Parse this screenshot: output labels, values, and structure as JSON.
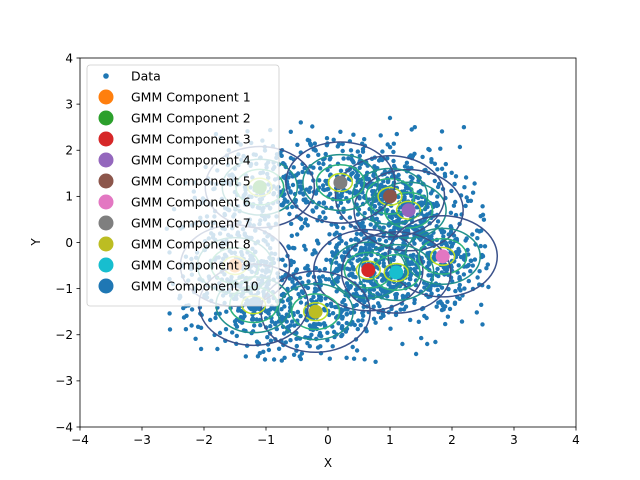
{
  "chart_data": {
    "type": "scatter",
    "title": "",
    "xlabel": "X",
    "ylabel": "Y",
    "xlim": [
      -4,
      4
    ],
    "ylim": [
      -4,
      4
    ],
    "xticks": [
      "−4",
      "−3",
      "−2",
      "−1",
      "0",
      "1",
      "2",
      "3",
      "4"
    ],
    "yticks": [
      "−4",
      "−3",
      "−2",
      "−1",
      "0",
      "1",
      "2",
      "3",
      "4"
    ],
    "grid": false,
    "legend_position": "top-left",
    "data_series": {
      "name": "Data",
      "color": "#1f77b4",
      "approx_count": 2000,
      "extent": {
        "x": [
          -2.6,
          2.6
        ],
        "y": [
          -2.6,
          2.7
        ]
      },
      "points_sample": [
        [
          -2.2,
          -1.8
        ],
        [
          -1.1,
          -2.4
        ],
        [
          -0.7,
          -2.5
        ],
        [
          0.3,
          -2.5
        ],
        [
          1.2,
          -2.2
        ],
        [
          1.6,
          -2.2
        ],
        [
          2.2,
          -1.0
        ],
        [
          2.5,
          -0.3
        ],
        [
          2.5,
          0.6
        ],
        [
          2.2,
          1.2
        ],
        [
          1.4,
          2.5
        ],
        [
          1.0,
          2.7
        ],
        [
          0.2,
          2.4
        ],
        [
          -0.6,
          2.4
        ],
        [
          -1.6,
          2.0
        ],
        [
          -2.3,
          1.3
        ],
        [
          -2.6,
          0.3
        ],
        [
          -2.5,
          -0.9
        ],
        [
          -1.5,
          1.6
        ],
        [
          1.9,
          1.7
        ]
      ]
    },
    "components": [
      {
        "name": "GMM Component 1",
        "color": "#ff7f0e",
        "mean": [
          -1.5,
          -0.5
        ]
      },
      {
        "name": "GMM Component 2",
        "color": "#2ca02c",
        "mean": [
          -1.1,
          1.2
        ]
      },
      {
        "name": "GMM Component 3",
        "color": "#d62728",
        "mean": [
          0.65,
          -0.6
        ]
      },
      {
        "name": "GMM Component 4",
        "color": "#9467bd",
        "mean": [
          1.3,
          0.7
        ]
      },
      {
        "name": "GMM Component 5",
        "color": "#8c564b",
        "mean": [
          1.0,
          1.0
        ]
      },
      {
        "name": "GMM Component 6",
        "color": "#e377c2",
        "mean": [
          1.85,
          -0.3
        ]
      },
      {
        "name": "GMM Component 7",
        "color": "#7f7f7f",
        "mean": [
          0.2,
          1.3
        ]
      },
      {
        "name": "GMM Component 8",
        "color": "#bcbd22",
        "mean": [
          -0.2,
          -1.5
        ]
      },
      {
        "name": "GMM Component 9",
        "color": "#17becf",
        "mean": [
          1.1,
          -0.65
        ]
      },
      {
        "name": "GMM Component 10",
        "color": "#1f77b4",
        "mean": [
          -1.2,
          -1.35
        ]
      }
    ]
  }
}
